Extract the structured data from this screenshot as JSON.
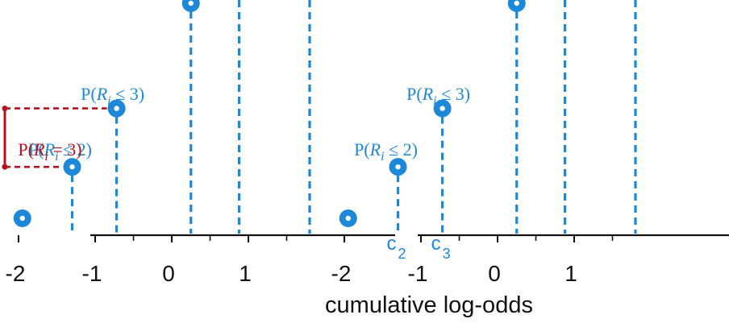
{
  "colors": {
    "blue": "#1e88d8",
    "red": "#b3121e",
    "axis": "#111111",
    "background": "#ffffff"
  },
  "chart_data": {
    "type": "scatter",
    "xlabel": "cumulative log-odds",
    "ticks": [
      "-2",
      "-1",
      "0",
      "1"
    ],
    "tick_values": [
      -2,
      -1,
      0,
      1
    ],
    "panels": [
      {
        "name": "left",
        "points_x": [
          -1.95,
          -1.3,
          -0.72,
          0.25
        ],
        "points_level": [
          0.08,
          0.3,
          0.55,
          1.0
        ],
        "dashed_x": [
          -1.3,
          -0.72,
          0.25,
          0.88,
          1.8
        ],
        "labels": [
          {
            "text_parts": [
              "P(",
              "R",
              "i",
              " ≤ 3)"
            ],
            "x": -0.72
          },
          {
            "text_parts": [
              "P(",
              "R",
              "i",
              " ≤ 2)"
            ],
            "x": -1.3
          }
        ],
        "difference_bracket": {
          "text_parts": [
            "P(",
            "R",
            "i",
            " = 3)"
          ],
          "from_level": 0.3,
          "to_level": 0.55
        }
      },
      {
        "name": "right",
        "points_x": [
          -1.95,
          -1.3,
          -0.72,
          0.25
        ],
        "points_level": [
          0.08,
          0.3,
          0.55,
          1.0
        ],
        "dashed_x": [
          -1.3,
          -0.72,
          0.25,
          0.88,
          1.8
        ],
        "labels": [
          {
            "text_parts": [
              "P(",
              "R",
              "i",
              " ≤ 3)"
            ],
            "x": -0.72
          },
          {
            "text_parts": [
              "P(",
              "R",
              "i",
              " ≤ 2)"
            ],
            "x": -1.3
          }
        ],
        "cutpoints": [
          {
            "letter": "c",
            "sub": "2",
            "x": -1.3
          },
          {
            "letter": "c",
            "sub": "3",
            "x": -0.72
          }
        ]
      }
    ]
  }
}
